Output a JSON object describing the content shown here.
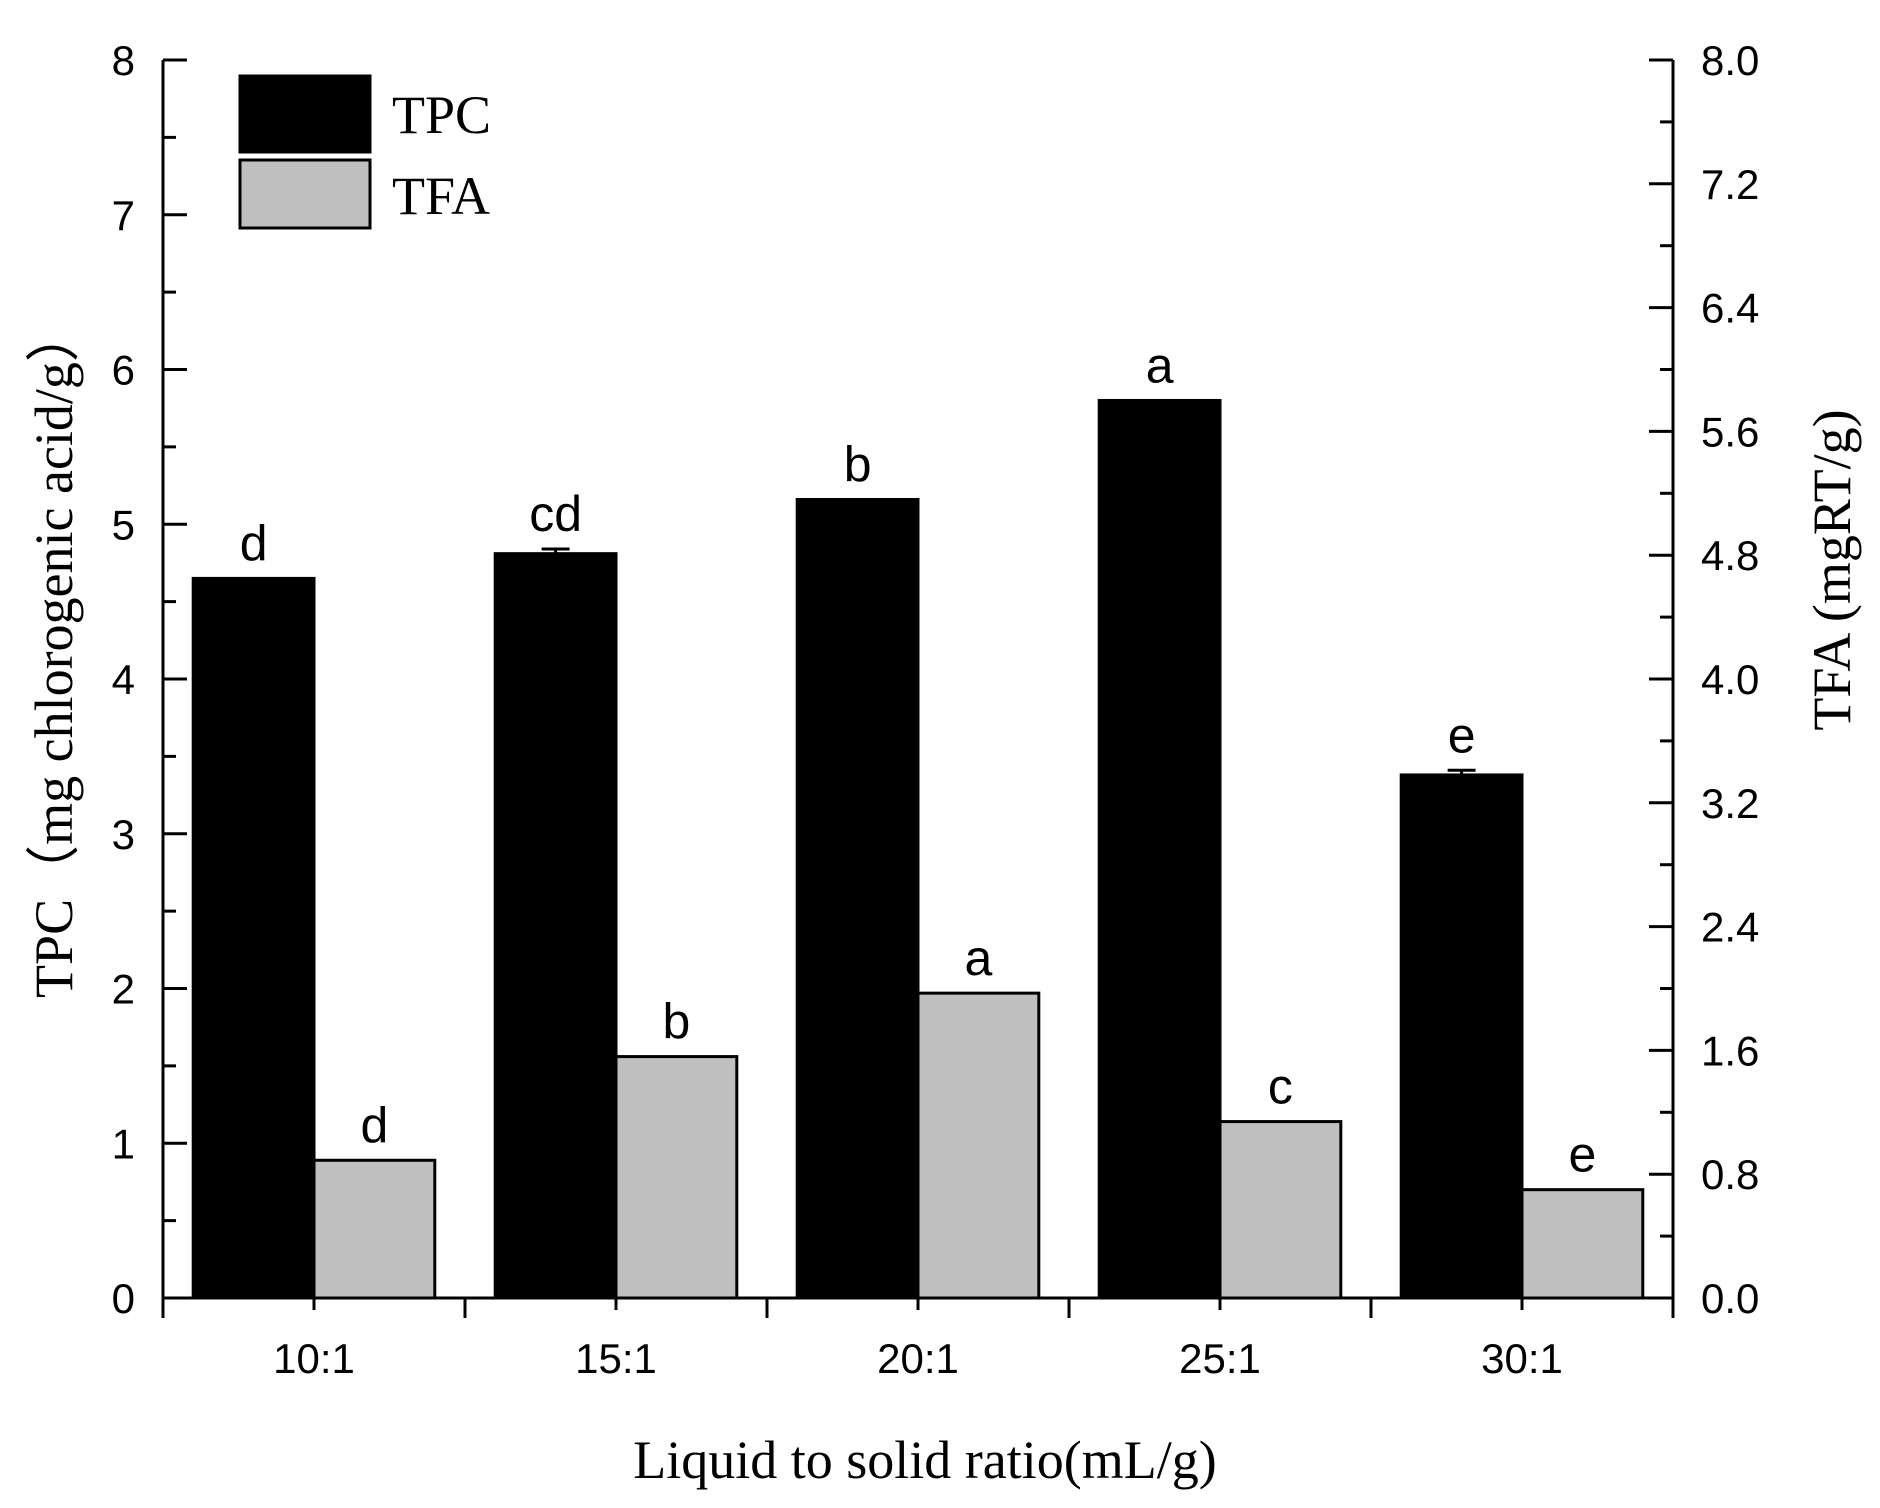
{
  "chart_data": {
    "type": "bar",
    "xlabel": "Liquid  to solid ratio(mL/g)",
    "ylabel_left": "TPC（mg chlorogenic acid/g）",
    "ylabel_right": "TFA (mgRT/g)",
    "categories": [
      "10:1",
      "15:1",
      "20:1",
      "25:1",
      "30:1"
    ],
    "ylim_left": [
      0,
      8
    ],
    "ylim_right": [
      0.0,
      8.0
    ],
    "yticks_left": [
      "0",
      "1",
      "2",
      "3",
      "4",
      "5",
      "6",
      "7",
      "8"
    ],
    "yticks_right": [
      "0.0",
      "0.8",
      "1.6",
      "2.4",
      "3.2",
      "4.0",
      "4.8",
      "5.6",
      "6.4",
      "7.2",
      "8.0"
    ],
    "series": [
      {
        "name": "TPC",
        "axis": "left",
        "color": "#000000",
        "values": [
          4.65,
          4.81,
          5.16,
          5.8,
          3.38
        ],
        "errors": [
          0.0,
          0.03,
          0.0,
          0.0,
          0.03
        ],
        "labels": [
          "d",
          "cd",
          "b",
          "a",
          "e"
        ]
      },
      {
        "name": "TFA",
        "axis": "right",
        "color": "#c0c0c0",
        "values": [
          0.89,
          1.56,
          1.97,
          1.14,
          0.7
        ],
        "errors": [
          0.0,
          0.0,
          0.0,
          0.0,
          0.0
        ],
        "labels": [
          "d",
          "b",
          "a",
          "c",
          "e"
        ]
      }
    ],
    "legend": {
      "position": "top-left",
      "entries": [
        "TPC",
        "TFA"
      ]
    },
    "grid": false
  }
}
